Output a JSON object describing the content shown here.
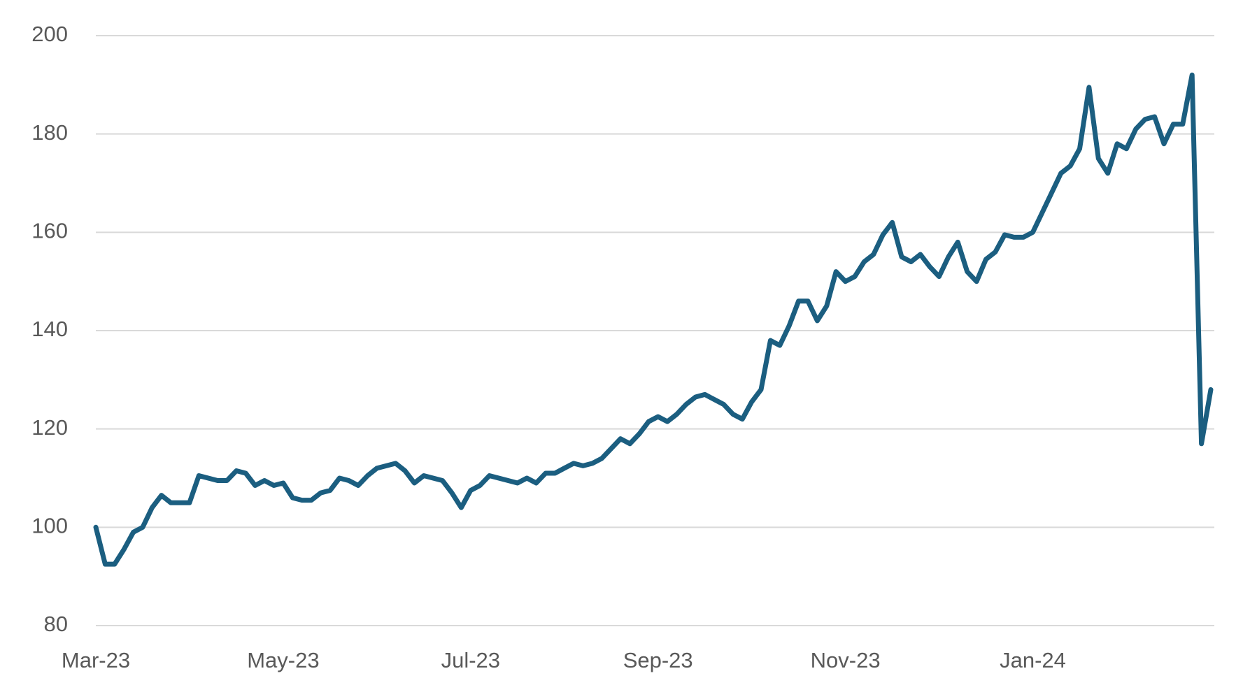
{
  "chart_data": {
    "type": "line",
    "categories": [
      "Mar-23",
      null,
      null,
      null,
      null,
      null,
      null,
      null,
      null,
      null,
      null,
      null,
      null,
      null,
      null,
      null,
      null,
      null,
      null,
      null,
      "May-23",
      null,
      null,
      null,
      null,
      null,
      null,
      null,
      null,
      null,
      null,
      null,
      null,
      null,
      null,
      null,
      null,
      null,
      null,
      null,
      "Jul-23",
      null,
      null,
      null,
      null,
      null,
      null,
      null,
      null,
      null,
      null,
      null,
      null,
      null,
      null,
      null,
      null,
      null,
      null,
      null,
      "Sep-23",
      null,
      null,
      null,
      null,
      null,
      null,
      null,
      null,
      null,
      null,
      null,
      null,
      null,
      null,
      null,
      null,
      null,
      null,
      null,
      "Nov-23",
      null,
      null,
      null,
      null,
      null,
      null,
      null,
      null,
      null,
      null,
      null,
      null,
      null,
      null,
      null,
      null,
      null,
      null,
      null,
      "Jan-24",
      null,
      null,
      null,
      null,
      null,
      null,
      null,
      null,
      null,
      null,
      null,
      null,
      null,
      null,
      null,
      null,
      null,
      null,
      null
    ],
    "values": [
      100,
      92.5,
      92.5,
      95.5,
      99,
      100,
      104,
      106.5,
      105,
      105,
      105,
      110.5,
      110,
      109.5,
      109.5,
      111.5,
      111,
      108.5,
      109.5,
      108.5,
      109,
      106,
      105.5,
      105.5,
      107,
      107.5,
      110,
      109.5,
      108.5,
      110.5,
      112,
      112.5,
      113,
      111.5,
      109,
      110.5,
      110,
      109.5,
      107,
      104,
      107.5,
      108.5,
      110.5,
      110,
      109.5,
      109,
      110,
      109,
      111,
      111,
      112,
      113,
      112.5,
      113,
      114,
      116,
      118,
      117,
      119,
      121.5,
      122.5,
      121.5,
      123,
      125,
      126.5,
      127,
      126,
      125,
      123,
      122,
      125.5,
      128,
      138,
      137,
      141,
      146,
      146,
      142,
      145,
      152,
      150,
      151,
      154,
      155.5,
      159.5,
      162,
      155,
      154,
      155.5,
      153,
      151,
      155,
      158,
      152,
      150,
      154.5,
      156,
      159.5,
      159,
      159,
      160,
      164,
      168,
      172,
      173.5,
      177,
      189.5,
      175,
      172,
      178,
      177,
      181,
      183,
      183.5,
      178,
      182,
      182,
      192,
      117,
      128
    ],
    "color": "#1b5e80",
    "ylim": [
      80,
      200
    ],
    "yticks": [
      80,
      100,
      120,
      140,
      160,
      180,
      200
    ],
    "grid": true
  }
}
